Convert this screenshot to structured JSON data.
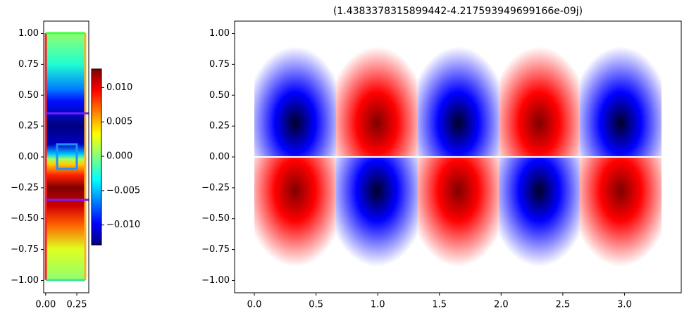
{
  "chart_data": [
    {
      "type": "heatmap",
      "colormap": "jet",
      "xlim": [
        -0.016,
        0.346
      ],
      "ylim": [
        -1.1,
        1.1
      ],
      "xticks": [
        {
          "value": 0,
          "label": "0.00"
        },
        0.25
      ],
      "yticks": [
        {
          "value": 1,
          "label": "1.00"
        },
        0.75,
        {
          "value": 0.5,
          "label": "0.50"
        },
        0.25,
        {
          "value": 0,
          "label": "0.00"
        },
        {
          "value": -0.25,
          "label": "−0.25"
        },
        {
          "value": -0.5,
          "label": "−0.50"
        },
        {
          "value": -0.75,
          "label": "−0.75"
        },
        {
          "value": -1,
          "label": "−1.00"
        }
      ],
      "colorbar": {
        "clim": [
          -0.0129,
          0.0127
        ],
        "ticks": [
          {
            "value": 0.01,
            "label": "0.010"
          },
          0.005,
          {
            "value": 0,
            "label": "0.000"
          },
          {
            "value": -0.005,
            "label": "−0.005"
          },
          {
            "value": -0.01,
            "label": "−0.010"
          }
        ]
      }
    },
    {
      "type": "heatmap",
      "colormap": "seismic",
      "title": "(1.4383378315899442-4.217593949699166e-09j)",
      "xlim": [
        -0.16,
        3.46
      ],
      "ylim": [
        -1.1,
        1.1
      ],
      "xticks": [
        {
          "value": 0,
          "label": "0.0"
        },
        0.5,
        {
          "value": 1,
          "label": "1.0"
        },
        1.5,
        {
          "value": 2,
          "label": "2.0"
        },
        2.5,
        {
          "value": 3,
          "label": "3.0"
        }
      ],
      "yticks": [
        {
          "value": 1,
          "label": "1.00"
        },
        0.75,
        {
          "value": 0.5,
          "label": "0.50"
        },
        0.25,
        {
          "value": 0,
          "label": "0.00"
        },
        {
          "value": -0.25,
          "label": "−0.25"
        },
        {
          "value": -0.5,
          "label": "−0.50"
        },
        {
          "value": -0.75,
          "label": "−0.75"
        },
        {
          "value": -1,
          "label": "−1.00"
        }
      ]
    }
  ]
}
